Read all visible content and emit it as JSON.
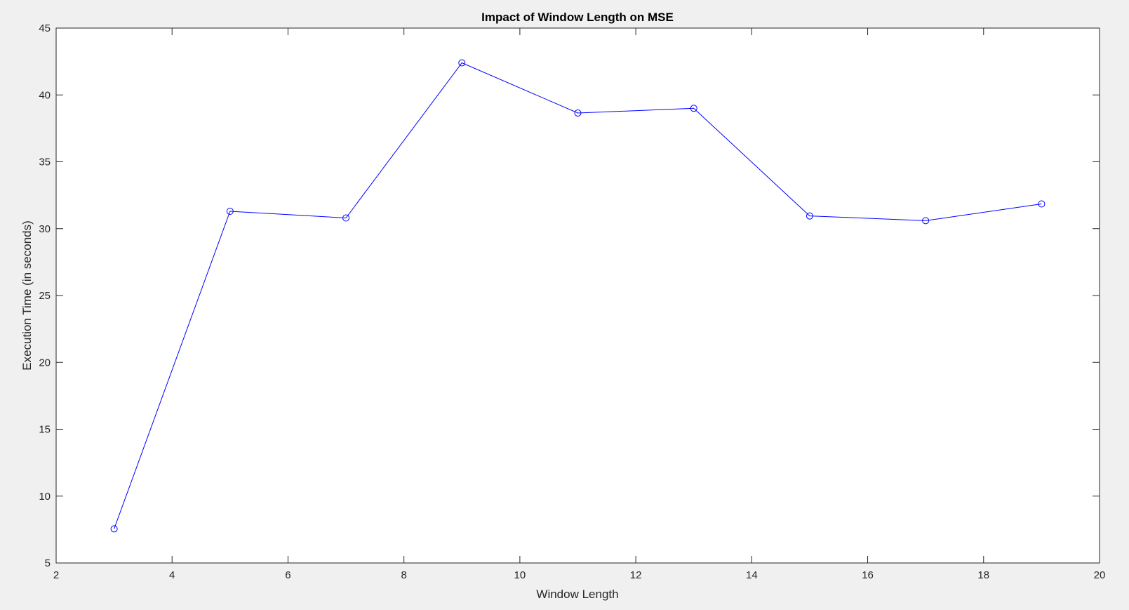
{
  "chart_data": {
    "type": "line",
    "title": "Impact of Window Length on MSE",
    "xlabel": "Window Length",
    "ylabel": "Execution Time (in seconds)",
    "xlim": [
      2,
      20
    ],
    "ylim": [
      5,
      45
    ],
    "xticks": [
      2,
      4,
      6,
      8,
      10,
      12,
      14,
      16,
      18,
      20
    ],
    "yticks": [
      5,
      10,
      15,
      20,
      25,
      30,
      35,
      40,
      45
    ],
    "grid": false,
    "legend": "none",
    "series": [
      {
        "x": [
          3,
          5,
          7,
          9,
          11,
          13,
          15,
          17,
          19
        ],
        "values": [
          7.55,
          31.3,
          30.8,
          42.4,
          38.65,
          39.0,
          30.95,
          30.6,
          31.85
        ],
        "color": "#0000ff",
        "marker": "circle"
      }
    ]
  },
  "colors": {
    "figure_background": "#f0f0f0",
    "axes_background": "#ffffff",
    "axes_line": "#262626",
    "series": "#0000ff"
  }
}
